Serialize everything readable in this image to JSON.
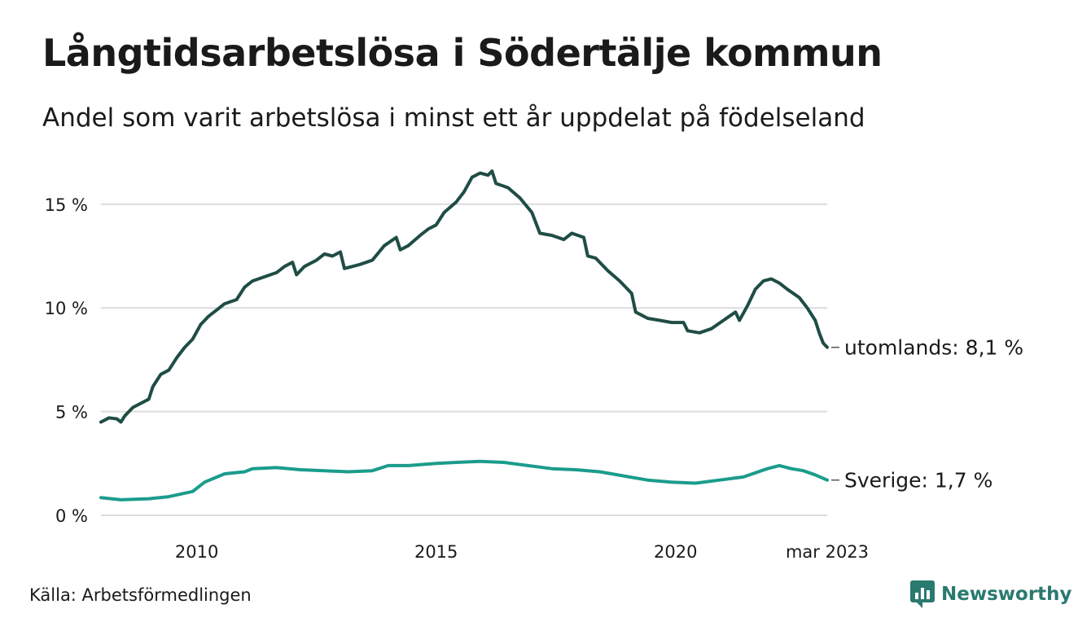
{
  "header": {
    "title": "Långtidsarbetslösa i Södertälje kommun",
    "subtitle": "Andel som varit arbetslösa i minst ett år uppdelat på födelseland"
  },
  "footer": {
    "source": "Källa: Arbetsförmedlingen",
    "brand": "Newsworthy",
    "brand_color": "#2a7a70"
  },
  "chart_data": {
    "type": "line",
    "title": "Långtidsarbetslösa i Södertälje kommun",
    "subtitle": "Andel som varit arbetslösa i minst ett år uppdelat på födelseland",
    "xlabel": "",
    "ylabel": "",
    "ylim": [
      0,
      16.8
    ],
    "xlim": [
      "2008-01",
      "2023-03"
    ],
    "y_ticks": [
      0,
      5,
      10,
      15
    ],
    "y_tick_labels": [
      "0 %",
      "5 %",
      "10 %",
      "15 %"
    ],
    "x_ticks": [
      "2010-01",
      "2015-01",
      "2020-01",
      "2023-03"
    ],
    "x_tick_labels": [
      "2010",
      "2015",
      "2020",
      "mar 2023"
    ],
    "grid": "horizontal",
    "series": [
      {
        "key": "utomlands",
        "end_label": "utomlands: 8,1 %",
        "color": "#1f4d45",
        "points": [
          [
            "2008-01",
            4.5
          ],
          [
            "2008-03",
            4.7
          ],
          [
            "2008-05",
            4.65
          ],
          [
            "2008-06",
            4.5
          ],
          [
            "2008-07",
            4.8
          ],
          [
            "2008-09",
            5.2
          ],
          [
            "2008-11",
            5.4
          ],
          [
            "2009-01",
            5.6
          ],
          [
            "2009-02",
            6.2
          ],
          [
            "2009-04",
            6.8
          ],
          [
            "2009-06",
            7.0
          ],
          [
            "2009-08",
            7.6
          ],
          [
            "2009-10",
            8.1
          ],
          [
            "2009-12",
            8.5
          ],
          [
            "2010-02",
            9.2
          ],
          [
            "2010-04",
            9.6
          ],
          [
            "2010-06",
            9.9
          ],
          [
            "2010-08",
            10.2
          ],
          [
            "2010-11",
            10.4
          ],
          [
            "2011-01",
            11.0
          ],
          [
            "2011-03",
            11.3
          ],
          [
            "2011-06",
            11.5
          ],
          [
            "2011-09",
            11.7
          ],
          [
            "2011-11",
            12.0
          ],
          [
            "2012-01",
            12.2
          ],
          [
            "2012-02",
            11.6
          ],
          [
            "2012-04",
            12.0
          ],
          [
            "2012-07",
            12.3
          ],
          [
            "2012-09",
            12.6
          ],
          [
            "2012-11",
            12.5
          ],
          [
            "2013-01",
            12.7
          ],
          [
            "2013-02",
            11.9
          ],
          [
            "2013-04",
            12.0
          ],
          [
            "2013-06",
            12.1
          ],
          [
            "2013-09",
            12.3
          ],
          [
            "2013-12",
            13.0
          ],
          [
            "2014-03",
            13.4
          ],
          [
            "2014-04",
            12.8
          ],
          [
            "2014-06",
            13.0
          ],
          [
            "2014-09",
            13.5
          ],
          [
            "2014-11",
            13.8
          ],
          [
            "2015-01",
            14.0
          ],
          [
            "2015-03",
            14.6
          ],
          [
            "2015-06",
            15.1
          ],
          [
            "2015-08",
            15.6
          ],
          [
            "2015-10",
            16.3
          ],
          [
            "2015-12",
            16.5
          ],
          [
            "2016-02",
            16.4
          ],
          [
            "2016-03",
            16.6
          ],
          [
            "2016-04",
            16.0
          ],
          [
            "2016-07",
            15.8
          ],
          [
            "2016-10",
            15.3
          ],
          [
            "2017-01",
            14.6
          ],
          [
            "2017-03",
            13.6
          ],
          [
            "2017-06",
            13.5
          ],
          [
            "2017-09",
            13.3
          ],
          [
            "2017-11",
            13.6
          ],
          [
            "2018-02",
            13.4
          ],
          [
            "2018-03",
            12.5
          ],
          [
            "2018-05",
            12.4
          ],
          [
            "2018-08",
            11.8
          ],
          [
            "2018-11",
            11.3
          ],
          [
            "2019-02",
            10.7
          ],
          [
            "2019-03",
            9.8
          ],
          [
            "2019-06",
            9.5
          ],
          [
            "2019-09",
            9.4
          ],
          [
            "2019-12",
            9.3
          ],
          [
            "2020-03",
            9.3
          ],
          [
            "2020-04",
            8.9
          ],
          [
            "2020-07",
            8.8
          ],
          [
            "2020-10",
            9.0
          ],
          [
            "2021-01",
            9.4
          ],
          [
            "2021-04",
            9.8
          ],
          [
            "2021-05",
            9.4
          ],
          [
            "2021-07",
            10.1
          ],
          [
            "2021-09",
            10.9
          ],
          [
            "2021-11",
            11.3
          ],
          [
            "2022-01",
            11.4
          ],
          [
            "2022-03",
            11.2
          ],
          [
            "2022-05",
            10.9
          ],
          [
            "2022-08",
            10.5
          ],
          [
            "2022-10",
            10.0
          ],
          [
            "2022-12",
            9.4
          ],
          [
            "2023-01",
            8.8
          ],
          [
            "2023-02",
            8.3
          ],
          [
            "2023-03",
            8.1
          ]
        ]
      },
      {
        "key": "sverige",
        "end_label": "Sverige: 1,7 %",
        "color": "#1b9c8c",
        "points": [
          [
            "2008-01",
            0.85
          ],
          [
            "2008-06",
            0.75
          ],
          [
            "2009-01",
            0.8
          ],
          [
            "2009-06",
            0.9
          ],
          [
            "2009-12",
            1.15
          ],
          [
            "2010-03",
            1.6
          ],
          [
            "2010-08",
            2.0
          ],
          [
            "2011-01",
            2.1
          ],
          [
            "2011-03",
            2.25
          ],
          [
            "2011-09",
            2.3
          ],
          [
            "2012-03",
            2.2
          ],
          [
            "2012-09",
            2.15
          ],
          [
            "2013-03",
            2.1
          ],
          [
            "2013-09",
            2.15
          ],
          [
            "2014-01",
            2.4
          ],
          [
            "2014-06",
            2.4
          ],
          [
            "2015-01",
            2.5
          ],
          [
            "2015-06",
            2.55
          ],
          [
            "2015-12",
            2.6
          ],
          [
            "2016-06",
            2.55
          ],
          [
            "2016-12",
            2.4
          ],
          [
            "2017-06",
            2.25
          ],
          [
            "2017-12",
            2.2
          ],
          [
            "2018-06",
            2.1
          ],
          [
            "2018-12",
            1.9
          ],
          [
            "2019-06",
            1.7
          ],
          [
            "2019-12",
            1.6
          ],
          [
            "2020-06",
            1.55
          ],
          [
            "2020-12",
            1.7
          ],
          [
            "2021-06",
            1.85
          ],
          [
            "2021-12",
            2.25
          ],
          [
            "2022-03",
            2.4
          ],
          [
            "2022-06",
            2.25
          ],
          [
            "2022-09",
            2.15
          ],
          [
            "2022-12",
            1.95
          ],
          [
            "2023-03",
            1.7
          ]
        ]
      }
    ]
  }
}
